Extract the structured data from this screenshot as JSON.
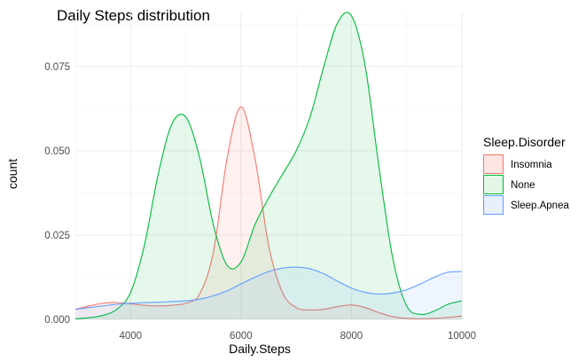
{
  "chart_data": {
    "type": "area",
    "title": "Daily Steps distribution",
    "xlabel": "Daily.Steps",
    "ylabel": "count",
    "xlim": [
      3000,
      10000
    ],
    "ylim": [
      0,
      0.091
    ],
    "x_ticks": [
      4000,
      6000,
      8000,
      10000
    ],
    "y_ticks": [
      0.0,
      0.025,
      0.05,
      0.075
    ],
    "x_tick_labels": [
      "4000",
      "6000",
      "8000",
      "10000"
    ],
    "y_tick_labels": [
      "0.000",
      "0.025",
      "0.050",
      "0.075"
    ],
    "grid": true,
    "legend": {
      "title": "Sleep.Disorder",
      "position": "right"
    },
    "x": [
      3000,
      3250,
      3500,
      3750,
      4000,
      4250,
      4500,
      4750,
      5000,
      5250,
      5500,
      5750,
      6000,
      6250,
      6500,
      6750,
      7000,
      7250,
      7500,
      7750,
      8000,
      8250,
      8500,
      8750,
      9000,
      9250,
      9500,
      9750,
      10000
    ],
    "series": [
      {
        "name": "Insomnia",
        "line_color": "#f8766d",
        "fill_color": "#fde5e3",
        "values": [
          0.003,
          0.004,
          0.0048,
          0.005,
          0.0046,
          0.0042,
          0.004,
          0.0042,
          0.0048,
          0.0075,
          0.02,
          0.048,
          0.063,
          0.048,
          0.022,
          0.008,
          0.0035,
          0.0028,
          0.003,
          0.0038,
          0.0043,
          0.0035,
          0.002,
          0.0008,
          0.0003,
          0.0002,
          0.0003,
          0.0006,
          0.001
        ]
      },
      {
        "name": "None",
        "line_color": "#00ba38",
        "fill_color": "#e3f6e8",
        "values": [
          0.0002,
          0.0005,
          0.0012,
          0.003,
          0.008,
          0.022,
          0.043,
          0.058,
          0.06,
          0.048,
          0.028,
          0.016,
          0.017,
          0.028,
          0.036,
          0.043,
          0.05,
          0.06,
          0.075,
          0.088,
          0.09,
          0.075,
          0.045,
          0.018,
          0.004,
          0.0015,
          0.0025,
          0.0045,
          0.0055
        ]
      },
      {
        "name": "Sleep.Apnea",
        "line_color": "#619cff",
        "fill_color": "#e8effd",
        "values": [
          0.003,
          0.0035,
          0.004,
          0.0045,
          0.0048,
          0.005,
          0.0051,
          0.0053,
          0.0055,
          0.006,
          0.007,
          0.0085,
          0.0105,
          0.0125,
          0.0142,
          0.0152,
          0.0155,
          0.015,
          0.0135,
          0.0113,
          0.0093,
          0.008,
          0.0075,
          0.0078,
          0.0088,
          0.0105,
          0.0125,
          0.014,
          0.0142
        ]
      }
    ]
  },
  "colors": {
    "panel_background": "#ffffff",
    "grid": "#ebebeb",
    "tick_text": "#4d4d4d"
  }
}
